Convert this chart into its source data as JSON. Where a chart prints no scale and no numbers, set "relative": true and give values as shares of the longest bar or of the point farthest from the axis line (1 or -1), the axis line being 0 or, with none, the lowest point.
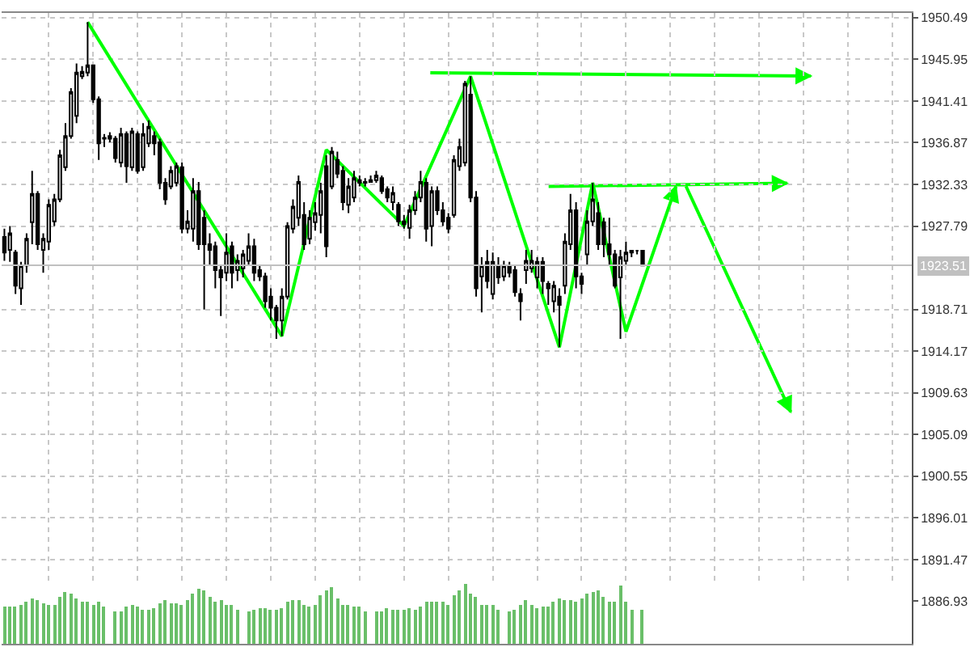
{
  "chart_data": [
    {
      "type": "candlestick",
      "categories": [
        null,
        null,
        null,
        null,
        null,
        null,
        null,
        null,
        null,
        null,
        null,
        null,
        null,
        null,
        null,
        null,
        null,
        null,
        null,
        null,
        null,
        null,
        null,
        null,
        null,
        null,
        null,
        null,
        null,
        null,
        null,
        null,
        null,
        null,
        null,
        null,
        null,
        null,
        null,
        null,
        null,
        null,
        null,
        null,
        null,
        null,
        null,
        null,
        null,
        null,
        null,
        null,
        null,
        null,
        null,
        null,
        null,
        null,
        null,
        null,
        null,
        null,
        null,
        null,
        null,
        null,
        null,
        null,
        null,
        null,
        null,
        null,
        null,
        null,
        null,
        null,
        null,
        null,
        null,
        null,
        null,
        null,
        null,
        null,
        null,
        null,
        null,
        null,
        null,
        null,
        null,
        null,
        null,
        null,
        null,
        null,
        null,
        null,
        null,
        null,
        null,
        null,
        null,
        null,
        null,
        null,
        null,
        null,
        null,
        null,
        null,
        null,
        null,
        null,
        null,
        null,
        null,
        null,
        null,
        null,
        null,
        null,
        null,
        null,
        null,
        null,
        null,
        null,
        null,
        null,
        null,
        null,
        null,
        null,
        null,
        null,
        null,
        null,
        null,
        null,
        null,
        null,
        null,
        null,
        null,
        null,
        null,
        null,
        null,
        null,
        null,
        null,
        null,
        null,
        null,
        null,
        null,
        null,
        null,
        null,
        null,
        null,
        null,
        null
      ],
      "ohlc": [
        [
          1926.6,
          1927.5,
          1924.0,
          1924.9
        ],
        [
          1925.2,
          1927.8,
          1923.9,
          1927.0
        ],
        [
          1924.9,
          1925.2,
          1920.4,
          1921.3
        ],
        [
          1921.0,
          1923.9,
          1919.2,
          1923.5
        ],
        [
          1923.5,
          1927.0,
          1922.7,
          1926.4
        ],
        [
          1928.2,
          1933.8,
          1925.8,
          1931.3
        ],
        [
          1931.3,
          1931.6,
          1925.2,
          1925.8
        ],
        [
          1925.2,
          1927.0,
          1922.7,
          1926.4
        ],
        [
          1926.1,
          1930.7,
          1925.2,
          1930.1
        ],
        [
          1928.3,
          1931.3,
          1927.8,
          1930.7
        ],
        [
          1930.7,
          1936.1,
          1930.4,
          1935.5
        ],
        [
          1934.2,
          1939.0,
          1933.8,
          1937.6
        ],
        [
          1937.6,
          1942.8,
          1937.3,
          1942.4
        ],
        [
          1939.8,
          1945.5,
          1939.0,
          1944.5
        ],
        [
          1944.1,
          1945.2,
          1943.8,
          1944.6
        ],
        [
          1944.5,
          1950.0,
          1944.1,
          1945.3
        ],
        [
          1945.3,
          1945.3,
          1941.2,
          1941.6
        ],
        [
          1941.6,
          1941.9,
          1935.0,
          1936.8
        ],
        [
          1937.3,
          1937.8,
          1936.4,
          1937.4
        ],
        [
          1937.6,
          1938.0,
          1936.9,
          1937.3
        ],
        [
          1937.3,
          1937.6,
          1934.7,
          1935.2
        ],
        [
          1934.7,
          1938.5,
          1934.2,
          1937.8
        ],
        [
          1937.8,
          1938.1,
          1932.5,
          1934.3
        ],
        [
          1934.2,
          1938.5,
          1933.8,
          1938.1
        ],
        [
          1937.8,
          1938.1,
          1933.5,
          1933.8
        ],
        [
          1934.2,
          1939.0,
          1933.8,
          1937.8
        ],
        [
          1936.8,
          1939.3,
          1936.4,
          1938.6
        ],
        [
          1937.6,
          1938.1,
          1935.5,
          1936.8
        ],
        [
          1936.9,
          1937.3,
          1931.8,
          1932.5
        ],
        [
          1932.5,
          1933.0,
          1930.1,
          1930.7
        ],
        [
          1932.1,
          1934.3,
          1931.8,
          1933.8
        ],
        [
          1932.5,
          1934.7,
          1932.1,
          1934.3
        ],
        [
          1934.2,
          1934.7,
          1927.0,
          1927.5
        ],
        [
          1927.5,
          1929.5,
          1927.0,
          1928.3
        ],
        [
          1927.5,
          1933.0,
          1926.1,
          1931.6
        ],
        [
          1931.6,
          1932.6,
          1925.2,
          1925.8
        ],
        [
          1928.7,
          1929.5,
          1918.7,
          1925.8
        ],
        [
          1925.8,
          1927.0,
          1923.5,
          1925.2
        ],
        [
          1925.6,
          1926.1,
          1921.0,
          1923.0
        ],
        [
          1923.0,
          1923.5,
          1918.0,
          1922.2
        ],
        [
          1922.7,
          1927.0,
          1921.8,
          1924.9
        ],
        [
          1925.6,
          1926.1,
          1921.0,
          1922.7
        ],
        [
          1923.0,
          1924.7,
          1921.8,
          1924.0
        ],
        [
          1923.2,
          1925.2,
          1922.2,
          1924.7
        ],
        [
          1924.0,
          1927.0,
          1923.5,
          1925.6
        ],
        [
          1925.6,
          1926.4,
          1921.8,
          1922.7
        ],
        [
          1923.0,
          1923.5,
          1921.8,
          1922.3
        ],
        [
          1922.3,
          1922.7,
          1918.9,
          1919.6
        ],
        [
          1920.1,
          1921.0,
          1917.5,
          1918.9
        ],
        [
          1918.9,
          1919.2,
          1915.5,
          1917.5
        ],
        [
          1917.5,
          1921.0,
          1915.8,
          1920.1
        ],
        [
          1920.1,
          1928.2,
          1919.8,
          1927.8
        ],
        [
          1927.5,
          1930.7,
          1927.0,
          1929.9
        ],
        [
          1928.7,
          1933.3,
          1927.8,
          1932.6
        ],
        [
          1929.0,
          1930.4,
          1925.2,
          1925.8
        ],
        [
          1926.4,
          1929.5,
          1925.8,
          1928.7
        ],
        [
          1928.2,
          1930.4,
          1927.3,
          1929.2
        ],
        [
          1929.0,
          1932.5,
          1927.0,
          1931.6
        ],
        [
          1934.3,
          1935.5,
          1924.4,
          1925.6
        ],
        [
          1932.1,
          1936.4,
          1931.8,
          1935.9
        ],
        [
          1935.0,
          1935.9,
          1933.0,
          1933.5
        ],
        [
          1933.8,
          1934.3,
          1929.5,
          1930.4
        ],
        [
          1930.1,
          1933.0,
          1929.2,
          1932.1
        ],
        [
          1930.9,
          1933.8,
          1930.4,
          1933.0
        ],
        [
          1932.5,
          1933.3,
          1932.1,
          1932.8
        ],
        [
          1932.5,
          1933.0,
          1932.1,
          1932.6
        ],
        [
          1932.6,
          1933.3,
          1932.5,
          1932.8
        ],
        [
          1932.8,
          1933.8,
          1932.5,
          1933.3
        ],
        [
          1933.0,
          1933.3,
          1931.3,
          1931.6
        ],
        [
          1931.8,
          1932.1,
          1930.4,
          1930.9
        ],
        [
          1930.4,
          1932.1,
          1929.5,
          1931.4
        ],
        [
          1930.1,
          1930.4,
          1927.8,
          1928.3
        ],
        [
          1928.3,
          1929.0,
          1927.5,
          1928.0
        ],
        [
          1927.6,
          1930.1,
          1926.4,
          1929.5
        ],
        [
          1929.5,
          1931.6,
          1929.0,
          1930.9
        ],
        [
          1930.9,
          1933.8,
          1930.4,
          1932.6
        ],
        [
          1932.5,
          1933.0,
          1926.1,
          1927.5
        ],
        [
          1927.8,
          1932.1,
          1925.6,
          1931.6
        ],
        [
          1931.6,
          1932.1,
          1929.0,
          1929.5
        ],
        [
          1929.5,
          1930.4,
          1927.8,
          1928.3
        ],
        [
          1928.7,
          1929.2,
          1927.0,
          1927.5
        ],
        [
          1929.0,
          1935.5,
          1928.7,
          1935.0
        ],
        [
          1934.3,
          1937.3,
          1933.8,
          1936.4
        ],
        [
          1934.7,
          1943.6,
          1934.3,
          1943.3
        ],
        [
          1942.1,
          1944.1,
          1930.4,
          1930.9
        ],
        [
          1930.9,
          1931.6,
          1920.1,
          1921.0
        ],
        [
          1922.3,
          1924.4,
          1918.4,
          1923.5
        ],
        [
          1923.9,
          1925.2,
          1921.0,
          1921.8
        ],
        [
          1920.4,
          1924.9,
          1919.8,
          1923.9
        ],
        [
          1923.5,
          1924.4,
          1921.5,
          1922.2
        ],
        [
          1922.3,
          1924.0,
          1921.8,
          1923.5
        ],
        [
          1923.4,
          1923.9,
          1922.2,
          1922.7
        ],
        [
          1923.0,
          1923.5,
          1920.1,
          1920.6
        ],
        [
          1920.4,
          1921.0,
          1917.5,
          1919.6
        ],
        [
          1923.0,
          1925.2,
          1921.5,
          1924.0
        ],
        [
          1923.2,
          1925.2,
          1922.7,
          1924.0
        ],
        [
          1922.2,
          1924.4,
          1921.0,
          1923.9
        ],
        [
          1923.9,
          1924.4,
          1920.4,
          1921.8
        ],
        [
          1921.5,
          1921.8,
          1919.2,
          1921.0
        ],
        [
          1919.6,
          1921.8,
          1918.4,
          1921.3
        ],
        [
          1920.1,
          1921.0,
          1914.6,
          1919.2
        ],
        [
          1921.3,
          1927.0,
          1920.4,
          1926.1
        ],
        [
          1925.8,
          1931.3,
          1925.2,
          1929.5
        ],
        [
          1929.5,
          1930.4,
          1921.0,
          1922.3
        ],
        [
          1922.3,
          1922.7,
          1920.4,
          1921.5
        ],
        [
          1924.7,
          1929.5,
          1923.5,
          1928.3
        ],
        [
          1928.3,
          1932.5,
          1927.8,
          1930.7
        ],
        [
          1929.2,
          1930.4,
          1925.2,
          1925.8
        ],
        [
          1928.2,
          1928.7,
          1924.4,
          1925.8
        ],
        [
          1925.8,
          1928.7,
          1923.5,
          1924.7
        ],
        [
          1924.7,
          1925.2,
          1921.0,
          1921.3
        ],
        [
          1922.2,
          1925.2,
          1915.5,
          1924.4
        ],
        [
          1924.0,
          1926.1,
          1923.5,
          1924.9
        ],
        [
          1924.9,
          1925.2,
          1924.4,
          1925.1
        ],
        [
          1925.1,
          1925.2,
          1924.7,
          1925.1
        ],
        [
          1925.1,
          1925.2,
          1923.4,
          1923.5
        ],
        null,
        null,
        null,
        null,
        null,
        null,
        null,
        null,
        null,
        null,
        null,
        null,
        null,
        null,
        null,
        null,
        null,
        null,
        null,
        null,
        null,
        null,
        null,
        null,
        null,
        null,
        null,
        null,
        null,
        null,
        null,
        null,
        null,
        null,
        null,
        null,
        null,
        null,
        null,
        null,
        null,
        null,
        null,
        null,
        null,
        null,
        null,
        null
      ],
      "series": [
        {
          "type": "line",
          "color": "#00ff00",
          "values": [
            null,
            null,
            null,
            null,
            null,
            null,
            null,
            null,
            null,
            null,
            null,
            null,
            null,
            null,
            null,
            1950.0,
            null,
            null,
            null,
            null,
            null,
            null,
            null,
            null,
            null,
            null,
            null,
            null,
            null,
            null,
            null,
            null,
            null,
            null,
            null,
            null,
            null,
            null,
            null,
            null,
            null,
            null,
            null,
            null,
            null,
            null,
            null,
            null,
            null,
            null,
            1915.8,
            null,
            null,
            null,
            null,
            null,
            null,
            null,
            1936.1,
            null,
            null,
            null,
            null,
            null,
            null,
            null,
            null,
            null,
            null,
            null,
            null,
            null,
            1927.8,
            null,
            null,
            null,
            null,
            null,
            null,
            null,
            null,
            null,
            null,
            null,
            1944.1,
            null,
            null,
            null,
            null,
            null,
            null,
            null,
            null,
            null,
            null,
            null,
            null,
            null,
            null,
            null,
            1914.6,
            null,
            null,
            null,
            null,
            null,
            1932.5,
            null,
            null,
            null,
            null,
            null,
            1916.3,
            null,
            null,
            null,
            null,
            null,
            null,
            null,
            null,
            1932.1,
            null,
            null,
            null,
            null,
            null,
            null,
            null,
            null,
            null,
            null,
            null,
            null,
            null,
            null,
            null,
            null,
            null,
            null,
            null,
            null,
            null,
            null,
            null,
            null,
            null,
            null,
            null,
            null,
            null,
            null,
            null,
            null,
            null,
            null,
            null,
            null,
            null,
            null,
            null,
            null,
            null,
            null
          ]
        }
      ],
      "ylim": [
        1882.3,
        1951.0
      ],
      "yticks": [
        1886.93,
        1891.47,
        1896.01,
        1900.55,
        1905.09,
        1909.63,
        1914.17,
        1918.71,
        1927.79,
        1932.33,
        1936.87,
        1941.41,
        1945.95,
        1950.49
      ],
      "ref_lines": [
        {
          "axis": "y",
          "value": 1923.51,
          "label": "1923.51",
          "color": "#c0c0c0"
        }
      ],
      "grid": true,
      "tick_labels": "y"
    },
    {
      "type": "bar",
      "relative": true,
      "color": "#6abf69",
      "categories": [
        null,
        null,
        null,
        null,
        null,
        null,
        null,
        null,
        null,
        null,
        null,
        null,
        null,
        null,
        null,
        null,
        null,
        null,
        null,
        null,
        null,
        null,
        null,
        null,
        null,
        null,
        null,
        null,
        null,
        null,
        null,
        null,
        null,
        null,
        null,
        null,
        null,
        null,
        null,
        null,
        null,
        null,
        null,
        null,
        null,
        null,
        null,
        null,
        null,
        null,
        null,
        null,
        null,
        null,
        null,
        null,
        null,
        null,
        null,
        null,
        null,
        null,
        null,
        null,
        null,
        null,
        null,
        null,
        null,
        null,
        null,
        null,
        null,
        null,
        null,
        null,
        null,
        null,
        null,
        null,
        null,
        null,
        null,
        null,
        null,
        null,
        null,
        null,
        null,
        null,
        null,
        null,
        null,
        null,
        null,
        null,
        null,
        null,
        null,
        null,
        null,
        null,
        null,
        null,
        null,
        null,
        null,
        null,
        null,
        null,
        null,
        null,
        null,
        null,
        null,
        null,
        null,
        null,
        null,
        null,
        null,
        null,
        null,
        null,
        null,
        null,
        null,
        null,
        null,
        null,
        null,
        null,
        null,
        null,
        null,
        null,
        null,
        null,
        null,
        null,
        null,
        null,
        null,
        null,
        null,
        null,
        null,
        null,
        null,
        null,
        null,
        null,
        null,
        null,
        null,
        null,
        null,
        null,
        null,
        null,
        null,
        null,
        null,
        null
      ],
      "values": [
        0.62,
        0.62,
        0.62,
        0.65,
        0.71,
        0.75,
        0.73,
        0.68,
        0.66,
        0.66,
        0.78,
        0.87,
        0.84,
        0.75,
        0.69,
        0.7,
        0.65,
        0.7,
        0.61,
        null,
        0.54,
        0.53,
        0.63,
        0.66,
        0.61,
        0.58,
        0.58,
        0.59,
        0.68,
        0.73,
        0.67,
        0.68,
        0.65,
        0.74,
        0.84,
        0.92,
        0.88,
        0.79,
        0.7,
        0.73,
        0.65,
        0.66,
        0.56,
        null,
        0.53,
        0.57,
        0.59,
        0.6,
        0.56,
        0.58,
        0.59,
        0.69,
        0.72,
        0.72,
        0.66,
        0.63,
        0.66,
        0.81,
        0.89,
        0.94,
        0.77,
        0.66,
        0.65,
        0.63,
        0.63,
        0.55,
        null,
        0.53,
        0.54,
        0.59,
        0.58,
        0.57,
        0.57,
        0.59,
        0.58,
        0.63,
        0.7,
        0.69,
        0.71,
        0.69,
        0.64,
        0.8,
        0.9,
        1.0,
        0.83,
        0.78,
        0.66,
        0.65,
        0.66,
        0.58,
        null,
        0.54,
        0.57,
        0.64,
        0.73,
        0.65,
        0.59,
        0.61,
        0.62,
        0.71,
        0.76,
        0.74,
        0.74,
        0.71,
        0.77,
        0.84,
        0.87,
        0.88,
        0.79,
        0.7,
        0.7,
        0.98,
        0.71,
        0.56,
        null,
        0.56,
        null,
        null,
        null,
        null,
        null,
        null,
        null,
        null,
        null,
        null,
        null,
        null,
        null,
        null,
        null,
        null,
        null,
        null,
        null,
        null,
        null,
        null,
        null,
        null,
        null,
        null,
        null,
        null,
        null,
        null,
        null,
        null,
        null,
        null,
        null,
        null,
        null,
        null,
        null,
        null,
        null,
        null,
        null,
        null,
        null,
        null,
        null,
        null
      ]
    }
  ]
}
